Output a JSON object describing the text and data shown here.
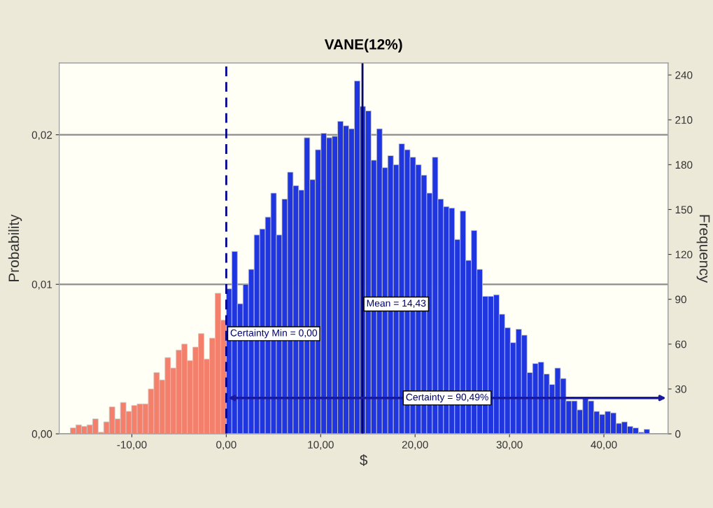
{
  "chart_data": {
    "type": "histogram",
    "title": "VANE(12%)",
    "xlabel": "$",
    "ylabel": "Probability",
    "y2label": "Frequency",
    "bins": [
      -16.52,
      -15.93,
      -15.34,
      -14.75,
      -14.16,
      -13.57,
      -12.98,
      -12.39,
      -11.8,
      -11.21,
      -10.62,
      -10.03,
      -9.44,
      -8.85,
      -8.26,
      -7.67,
      -7.08,
      -6.49,
      -5.9,
      -5.31,
      -4.72,
      -4.13,
      -3.54,
      -2.95,
      -2.36,
      -1.77,
      -1.18,
      -0.59,
      0,
      0.59,
      1.18,
      1.77,
      2.36,
      2.95,
      3.54,
      4.13,
      4.72,
      5.31,
      5.9,
      6.49,
      7.08,
      7.67,
      8.26,
      8.85,
      9.44,
      10.03,
      10.62,
      11.21,
      11.8,
      12.39,
      12.98,
      13.57,
      14.16,
      14.75,
      15.34,
      15.93,
      16.52,
      17.11,
      17.7,
      18.29,
      18.88,
      19.47,
      20.06,
      20.65,
      21.24,
      21.83,
      22.42,
      23.01,
      23.6,
      24.19,
      24.78,
      25.37,
      25.96,
      26.55,
      27.14,
      27.73,
      28.32,
      28.91,
      29.5,
      30.09,
      30.68,
      31.27,
      31.86,
      32.45,
      33.04,
      33.63,
      34.22,
      34.81,
      35.4,
      35.99,
      36.58,
      37.17,
      37.76,
      38.35,
      38.94,
      39.53,
      40.12,
      40.71,
      41.3,
      41.89,
      42.48,
      43.07,
      43.66,
      44.25,
      44.84
    ],
    "values": [
      0.0004,
      0.0006,
      0.0005,
      0.0006,
      0.001,
      0.0001,
      0.0008,
      0.0018,
      0.001,
      0.0021,
      0.0015,
      0.0019,
      0.002,
      0.002,
      0.003,
      0.0041,
      0.0036,
      0.0051,
      0.0044,
      0.0056,
      0.006,
      0.0049,
      0.0058,
      0.0067,
      0.005,
      0.0064,
      0.0094,
      0.0076,
      0.0097,
      0.0122,
      0.0087,
      0.01,
      0.011,
      0.0133,
      0.0137,
      0.0145,
      0.0161,
      0.0133,
      0.0157,
      0.0175,
      0.0166,
      0.0163,
      0.0198,
      0.017,
      0.019,
      0.0201,
      0.0198,
      0.0199,
      0.0209,
      0.0206,
      0.0204,
      0.0236,
      0.0219,
      0.0216,
      0.0183,
      0.0204,
      0.0178,
      0.0186,
      0.018,
      0.0194,
      0.019,
      0.0185,
      0.018,
      0.0173,
      0.0161,
      0.0185,
      0.0157,
      0.0152,
      0.0151,
      0.013,
      0.0149,
      0.0116,
      0.0136,
      0.011,
      0.0092,
      0.0092,
      0.0093,
      0.008,
      0.0071,
      0.0061,
      0.007,
      0.0066,
      0.0041,
      0.0047,
      0.0048,
      0.004,
      0.0033,
      0.0044,
      0.0037,
      0.0022,
      0.0022,
      0.0016,
      0.0024,
      0.0022,
      0.0015,
      0.0013,
      0.0015,
      0.0014,
      0.0007,
      0.0008,
      0.0005,
      0.0004,
      0.0001,
      0.0003
    ],
    "colors": [
      "#f4806c",
      "#f4806c",
      "#f4806c",
      "#f4806c",
      "#f4806c",
      "#f4806c",
      "#f4806c",
      "#f4806c",
      "#f4806c",
      "#f4806c",
      "#f4806c",
      "#f4806c",
      "#f4806c",
      "#f4806c",
      "#f4806c",
      "#f4806c",
      "#f4806c",
      "#f4806c",
      "#f4806c",
      "#f4806c",
      "#f4806c",
      "#f4806c",
      "#f4806c",
      "#f4806c",
      "#f4806c",
      "#f4806c",
      "#f4806c",
      "#f4806c",
      "#1f35e0",
      "#1f35e0",
      "#1f35e0",
      "#1f35e0",
      "#1f35e0",
      "#1f35e0",
      "#1f35e0",
      "#1f35e0",
      "#1f35e0",
      "#1f35e0",
      "#1f35e0",
      "#1f35e0",
      "#1f35e0",
      "#1f35e0",
      "#1f35e0",
      "#1f35e0",
      "#1f35e0",
      "#1f35e0",
      "#1f35e0",
      "#1f35e0",
      "#1f35e0",
      "#1f35e0",
      "#1f35e0",
      "#1f35e0",
      "#1f35e0",
      "#1f35e0",
      "#1f35e0",
      "#1f35e0",
      "#1f35e0",
      "#1f35e0",
      "#1f35e0",
      "#1f35e0",
      "#1f35e0",
      "#1f35e0",
      "#1f35e0",
      "#1f35e0",
      "#1f35e0",
      "#1f35e0",
      "#1f35e0",
      "#1f35e0",
      "#1f35e0",
      "#1f35e0",
      "#1f35e0",
      "#1f35e0",
      "#1f35e0",
      "#1f35e0",
      "#1f35e0",
      "#1f35e0",
      "#1f35e0",
      "#1f35e0",
      "#1f35e0",
      "#1f35e0",
      "#1f35e0",
      "#1f35e0",
      "#1f35e0",
      "#1f35e0",
      "#1f35e0",
      "#1f35e0",
      "#1f35e0",
      "#1f35e0",
      "#1f35e0",
      "#1f35e0",
      "#1f35e0",
      "#1f35e0",
      "#1f35e0",
      "#1f35e0",
      "#1f35e0",
      "#1f35e0",
      "#1f35e0",
      "#1f35e0",
      "#1f35e0",
      "#1f35e0",
      "#1f35e0",
      "#1f35e0",
      "#1f35e0",
      "#1f35e0"
    ],
    "xlim": [
      -17.7,
      46.8
    ],
    "xticks": [
      {
        "value": -10,
        "label": "-10,00"
      },
      {
        "value": 0,
        "label": "0,00"
      },
      {
        "value": 10,
        "label": "10,00"
      },
      {
        "value": 20,
        "label": "20,00"
      },
      {
        "value": 30,
        "label": "30,00"
      },
      {
        "value": 40,
        "label": "40,00"
      }
    ],
    "ylim": [
      0,
      0.0248
    ],
    "yticks": [
      {
        "value": 0,
        "label": "0,00"
      },
      {
        "value": 0.01,
        "label": "0,01"
      },
      {
        "value": 0.02,
        "label": "0,02"
      }
    ],
    "y2lim": [
      0,
      248
    ],
    "y2ticks": [
      0,
      30,
      60,
      90,
      120,
      150,
      180,
      210,
      240
    ],
    "grid": "y",
    "ref_lines": [
      {
        "axis": "x",
        "value": 0,
        "label": "Certainty Min = 0,00",
        "color": "#00008b",
        "line_style": "dashed"
      },
      {
        "axis": "x",
        "value": 14.43,
        "label": "Mean = 14,43",
        "color": "#000060",
        "line_style": "solid"
      }
    ],
    "annotations": [
      {
        "text": "Certainty = 90,49%",
        "x": 23.4,
        "y": 0.0024
      }
    ]
  }
}
